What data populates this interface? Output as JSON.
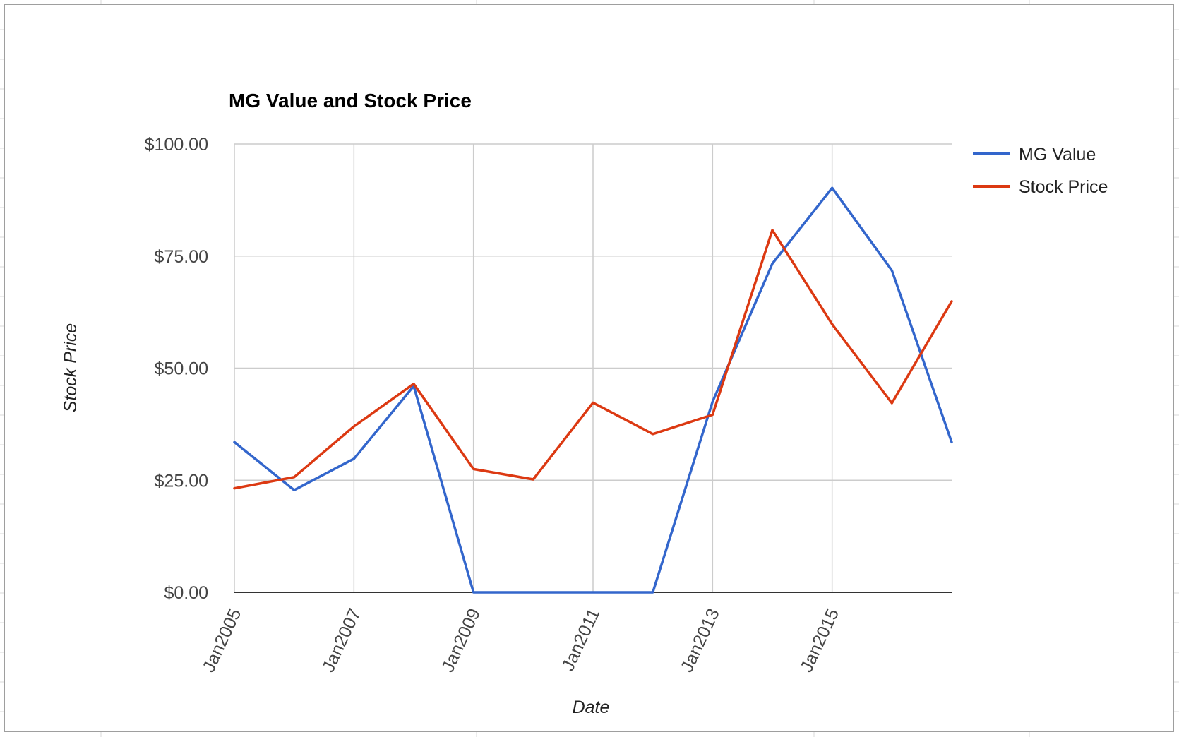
{
  "chart_data": {
    "type": "line",
    "title": "MG Value and Stock Price",
    "xlabel": "Date",
    "ylabel": "Stock Price",
    "x": [
      "Jan2005",
      "Jan2006",
      "Jan2007",
      "Jan2008",
      "Jan2009",
      "Jan2010",
      "Jan2011",
      "Jan2012",
      "Jan2013",
      "Jan2014",
      "Jan2015",
      "Jan2016",
      "Jan2017"
    ],
    "x_tick_labels": [
      "Jan2005",
      "Jan2007",
      "Jan2009",
      "Jan2011",
      "Jan2013",
      "Jan2015"
    ],
    "y_tick_labels": [
      "$0.00",
      "$25.00",
      "$50.00",
      "$75.00",
      "$100.00"
    ],
    "ylim": [
      0,
      100
    ],
    "grid": true,
    "legend_position": "right",
    "series": [
      {
        "name": "MG Value",
        "color": "#3366cc",
        "values": [
          33.5,
          22.8,
          29.8,
          46.0,
          0,
          0,
          0,
          0,
          42.5,
          73.3,
          90.2,
          71.8,
          33.5
        ]
      },
      {
        "name": "Stock Price",
        "color": "#dc3912",
        "values": [
          23.2,
          25.7,
          37.0,
          46.5,
          27.5,
          25.2,
          42.3,
          35.3,
          39.6,
          80.8,
          59.8,
          42.2,
          64.9
        ]
      }
    ]
  }
}
